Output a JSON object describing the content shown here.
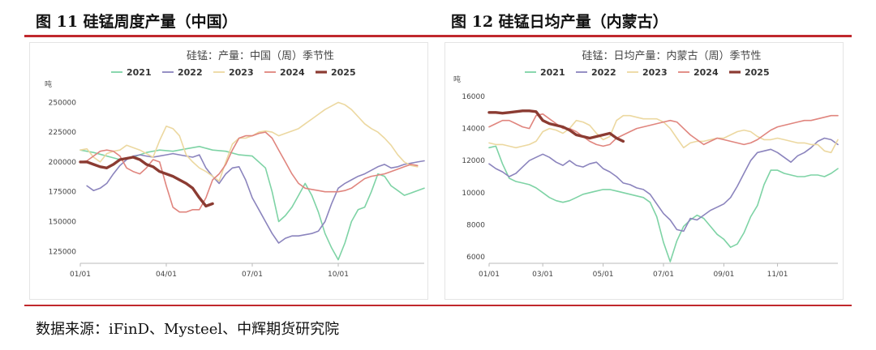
{
  "figures": [
    {
      "title": "图 11  硅锰周度产量（中国）"
    },
    {
      "title": "图 12 硅锰日均产量（内蒙古）"
    }
  ],
  "source": "数据来源：iFinD、Mysteel、中辉期货研究院",
  "chart_data": [
    {
      "type": "line",
      "title": "硅锰：产量：中国（周）季节性",
      "ylabel": "吨",
      "ylim": [
        115000,
        255000
      ],
      "yticks": [
        125000,
        150000,
        175000,
        200000,
        225000,
        250000
      ],
      "ytick_labels": [
        "125000",
        "150000",
        "175000",
        "200000",
        "225000",
        "250000"
      ],
      "xlim": [
        1,
        53
      ],
      "xticks": [
        1,
        14,
        27,
        40
      ],
      "xtick_labels": [
        "01/01",
        "04/01",
        "07/01",
        "10/01"
      ],
      "legend": "top",
      "series": [
        {
          "name": "2021",
          "color": "#7ed3a5",
          "width": 1.6,
          "x": [
            1,
            3,
            5,
            7,
            9,
            11,
            13,
            15,
            17,
            19,
            21,
            23,
            25,
            27,
            29,
            30,
            31,
            32,
            33,
            34,
            35,
            36,
            37,
            38,
            39,
            40,
            41,
            42,
            43,
            44,
            45,
            46,
            47,
            48,
            49,
            50,
            51,
            52,
            53
          ],
          "y": [
            210000,
            208000,
            205000,
            202000,
            204000,
            208000,
            210000,
            209000,
            211000,
            213000,
            210000,
            209000,
            206000,
            205000,
            195000,
            175000,
            150000,
            155000,
            162000,
            172000,
            182000,
            172000,
            158000,
            140000,
            128000,
            118000,
            132000,
            150000,
            160000,
            162000,
            175000,
            190000,
            188000,
            180000,
            176000,
            172000,
            174000,
            176000,
            178000
          ]
        },
        {
          "name": "2022",
          "color": "#8b84bd",
          "width": 1.6,
          "x": [
            2,
            3,
            4,
            5,
            6,
            7,
            8,
            9,
            10,
            11,
            12,
            13,
            14,
            15,
            16,
            17,
            18,
            19,
            20,
            21,
            22,
            23,
            24,
            25,
            26,
            27,
            28,
            29,
            30,
            31,
            32,
            33,
            34,
            35,
            36,
            37,
            38,
            39,
            40,
            41,
            42,
            43,
            44,
            45,
            46,
            47,
            48,
            49,
            50,
            51,
            52,
            53
          ],
          "y": [
            180000,
            176000,
            178000,
            182000,
            190000,
            197000,
            202000,
            205000,
            206000,
            205000,
            204000,
            205000,
            206000,
            207000,
            206000,
            205000,
            204000,
            206000,
            195000,
            188000,
            182000,
            190000,
            195000,
            196000,
            185000,
            170000,
            160000,
            150000,
            140000,
            132000,
            136000,
            138000,
            138000,
            139000,
            140000,
            142000,
            150000,
            165000,
            178000,
            182000,
            185000,
            188000,
            190000,
            193000,
            196000,
            198000,
            195000,
            196000,
            198000,
            199000,
            200000,
            201000
          ]
        },
        {
          "name": "2023",
          "color": "#ecd8a0",
          "width": 1.6,
          "x": [
            1,
            2,
            3,
            4,
            5,
            6,
            7,
            8,
            9,
            10,
            11,
            12,
            13,
            14,
            15,
            16,
            17,
            18,
            19,
            20,
            21,
            22,
            23,
            24,
            25,
            26,
            27,
            28,
            29,
            30,
            31,
            32,
            33,
            34,
            35,
            36,
            37,
            38,
            39,
            40,
            41,
            42,
            43,
            44,
            45,
            46,
            47,
            48,
            49,
            50,
            51,
            52
          ],
          "y": [
            210000,
            211000,
            204000,
            200000,
            207000,
            209000,
            210000,
            214000,
            212000,
            210000,
            207000,
            204000,
            218000,
            230000,
            228000,
            222000,
            206000,
            200000,
            195000,
            192000,
            188000,
            184000,
            200000,
            215000,
            220000,
            220000,
            222000,
            225000,
            226000,
            225000,
            222000,
            224000,
            226000,
            228000,
            232000,
            236000,
            240000,
            244000,
            247000,
            250000,
            248000,
            244000,
            238000,
            232000,
            228000,
            225000,
            220000,
            214000,
            206000,
            200000,
            197000,
            196000
          ]
        },
        {
          "name": "2024",
          "color": "#e0857e",
          "width": 1.6,
          "x": [
            1,
            2,
            3,
            4,
            5,
            6,
            7,
            8,
            9,
            10,
            11,
            12,
            13,
            14,
            15,
            16,
            17,
            18,
            19,
            20,
            21,
            22,
            23,
            24,
            25,
            26,
            27,
            28,
            29,
            30,
            31,
            32,
            33,
            34,
            35,
            36,
            37,
            38,
            39,
            40,
            41,
            42,
            43,
            44,
            45,
            46,
            47,
            48,
            49,
            50,
            51,
            52
          ],
          "y": [
            200000,
            201000,
            205000,
            209000,
            210000,
            209000,
            205000,
            195000,
            192000,
            190000,
            195000,
            202000,
            200000,
            180000,
            162000,
            158000,
            158000,
            160000,
            160000,
            170000,
            185000,
            190000,
            198000,
            210000,
            220000,
            222000,
            222000,
            224000,
            225000,
            220000,
            210000,
            200000,
            190000,
            182000,
            178000,
            177000,
            176000,
            175000,
            175000,
            175000,
            176000,
            178000,
            182000,
            186000,
            188000,
            189000,
            190000,
            192000,
            194000,
            196000,
            198000,
            197000
          ]
        },
        {
          "name": "2025",
          "color": "#8b3b32",
          "width": 3.4,
          "x": [
            1,
            2,
            3,
            4,
            5,
            6,
            7,
            8,
            9,
            10,
            11,
            12,
            13,
            14,
            15,
            16,
            17,
            18,
            19,
            20,
            21
          ],
          "y": [
            200000,
            200000,
            198000,
            196000,
            195000,
            198000,
            202000,
            203000,
            204000,
            202000,
            198000,
            196000,
            192000,
            190000,
            188000,
            185000,
            182000,
            178000,
            170000,
            163000,
            165000
          ]
        }
      ]
    },
    {
      "type": "line",
      "title": "硅锰：日均产量：内蒙古（周）季节性",
      "ylabel": "吨",
      "ylim": [
        5600,
        16300
      ],
      "yticks": [
        6000,
        8000,
        10000,
        12000,
        14000,
        16000
      ],
      "ytick_labels": [
        "6000",
        "8000",
        "10000",
        "12000",
        "14000",
        "16000"
      ],
      "xlim": [
        1,
        53
      ],
      "xticks": [
        1,
        9,
        18,
        27,
        36,
        44
      ],
      "xtick_labels": [
        "01/01",
        "03/01",
        "05/01",
        "07/01",
        "09/01",
        "11/01"
      ],
      "legend": "top",
      "series": [
        {
          "name": "2021",
          "color": "#7ed3a5",
          "width": 1.6,
          "x": [
            1,
            2,
            3,
            4,
            5,
            6,
            7,
            8,
            9,
            10,
            11,
            12,
            13,
            14,
            15,
            16,
            17,
            18,
            19,
            20,
            21,
            22,
            23,
            24,
            25,
            26,
            27,
            28,
            29,
            30,
            31,
            32,
            33,
            34,
            35,
            36,
            37,
            38,
            39,
            40,
            41,
            42,
            43,
            44,
            45,
            46,
            47,
            48,
            49,
            50,
            51,
            52,
            53
          ],
          "y": [
            12800,
            12900,
            11800,
            10900,
            10700,
            10600,
            10500,
            10300,
            10000,
            9700,
            9500,
            9400,
            9500,
            9700,
            9900,
            10000,
            10100,
            10200,
            10200,
            10100,
            10000,
            9900,
            9800,
            9700,
            9400,
            8500,
            6900,
            5700,
            7000,
            7900,
            8300,
            8600,
            8400,
            7900,
            7400,
            7100,
            6600,
            6800,
            7500,
            8500,
            9200,
            10500,
            11400,
            11400,
            11200,
            11100,
            11000,
            11000,
            11100,
            11100,
            11000,
            11200,
            11500
          ]
        },
        {
          "name": "2022",
          "color": "#8b84bd",
          "width": 1.6,
          "x": [
            1,
            2,
            3,
            4,
            5,
            6,
            7,
            8,
            9,
            10,
            11,
            12,
            13,
            14,
            15,
            16,
            17,
            18,
            19,
            20,
            21,
            22,
            23,
            24,
            25,
            26,
            27,
            28,
            29,
            30,
            31,
            32,
            33,
            34,
            35,
            36,
            37,
            38,
            39,
            40,
            41,
            42,
            43,
            44,
            45,
            46,
            47,
            48,
            49,
            50,
            51,
            52,
            53
          ],
          "y": [
            11800,
            11500,
            11300,
            11000,
            11200,
            11600,
            12000,
            12200,
            12400,
            12200,
            11900,
            11700,
            12000,
            11700,
            11600,
            11800,
            11900,
            11500,
            11300,
            11000,
            10600,
            10500,
            10300,
            10200,
            9900,
            9300,
            8700,
            8300,
            7700,
            7600,
            8400,
            8300,
            8600,
            8900,
            9100,
            9300,
            9700,
            10400,
            11200,
            12000,
            12500,
            12600,
            12700,
            12500,
            12200,
            11900,
            12300,
            12500,
            12800,
            13200,
            13400,
            13300,
            13000
          ]
        },
        {
          "name": "2023",
          "color": "#ecd8a0",
          "width": 1.6,
          "x": [
            1,
            2,
            3,
            4,
            5,
            6,
            7,
            8,
            9,
            10,
            11,
            12,
            13,
            14,
            15,
            16,
            17,
            18,
            19,
            20,
            21,
            22,
            23,
            24,
            25,
            26,
            27,
            28,
            29,
            30,
            31,
            32,
            33,
            34,
            35,
            36,
            37,
            38,
            39,
            40,
            41,
            42,
            43,
            44,
            45,
            46,
            47,
            48,
            49,
            50,
            51,
            52,
            53
          ],
          "y": [
            13100,
            13000,
            13000,
            12900,
            12800,
            12900,
            13000,
            13200,
            13800,
            14000,
            13900,
            13700,
            14000,
            14500,
            14400,
            14200,
            13700,
            13300,
            13500,
            14500,
            14800,
            14800,
            14700,
            14600,
            14600,
            14600,
            14400,
            14000,
            13400,
            12800,
            13100,
            13200,
            13200,
            13300,
            13400,
            13400,
            13600,
            13800,
            13900,
            13800,
            13500,
            13300,
            13300,
            13400,
            13300,
            13200,
            13100,
            13100,
            13000,
            13000,
            12600,
            12500,
            13300
          ]
        },
        {
          "name": "2024",
          "color": "#e0857e",
          "width": 1.6,
          "x": [
            1,
            2,
            3,
            4,
            5,
            6,
            7,
            8,
            9,
            10,
            11,
            12,
            13,
            14,
            15,
            16,
            17,
            18,
            19,
            20,
            21,
            22,
            23,
            24,
            25,
            26,
            27,
            28,
            29,
            30,
            31,
            32,
            33,
            34,
            35,
            36,
            37,
            38,
            39,
            40,
            41,
            42,
            43,
            44,
            45,
            46,
            47,
            48,
            49,
            50,
            51,
            52,
            53
          ],
          "y": [
            14100,
            14300,
            14500,
            14500,
            14300,
            14100,
            14000,
            14800,
            14900,
            14600,
            14300,
            14000,
            14000,
            13800,
            13500,
            13200,
            13000,
            12900,
            13000,
            13400,
            13600,
            13800,
            14000,
            14100,
            14200,
            14300,
            14400,
            14500,
            14400,
            14000,
            13600,
            13300,
            13000,
            13200,
            13400,
            13300,
            13200,
            13100,
            13000,
            13100,
            13300,
            13600,
            13900,
            14100,
            14200,
            14300,
            14400,
            14500,
            14500,
            14600,
            14700,
            14800,
            14800
          ]
        },
        {
          "name": "2025",
          "color": "#8b3b32",
          "width": 3.4,
          "x": [
            1,
            2,
            3,
            4,
            5,
            6,
            7,
            8,
            9,
            10,
            11,
            12,
            13,
            14,
            15,
            16,
            17,
            18,
            19,
            20,
            21
          ],
          "y": [
            15000,
            15000,
            14950,
            15000,
            15050,
            15100,
            15100,
            15050,
            14500,
            14300,
            14200,
            14100,
            13900,
            13600,
            13500,
            13400,
            13500,
            13600,
            13700,
            13400,
            13200
          ]
        }
      ]
    }
  ]
}
